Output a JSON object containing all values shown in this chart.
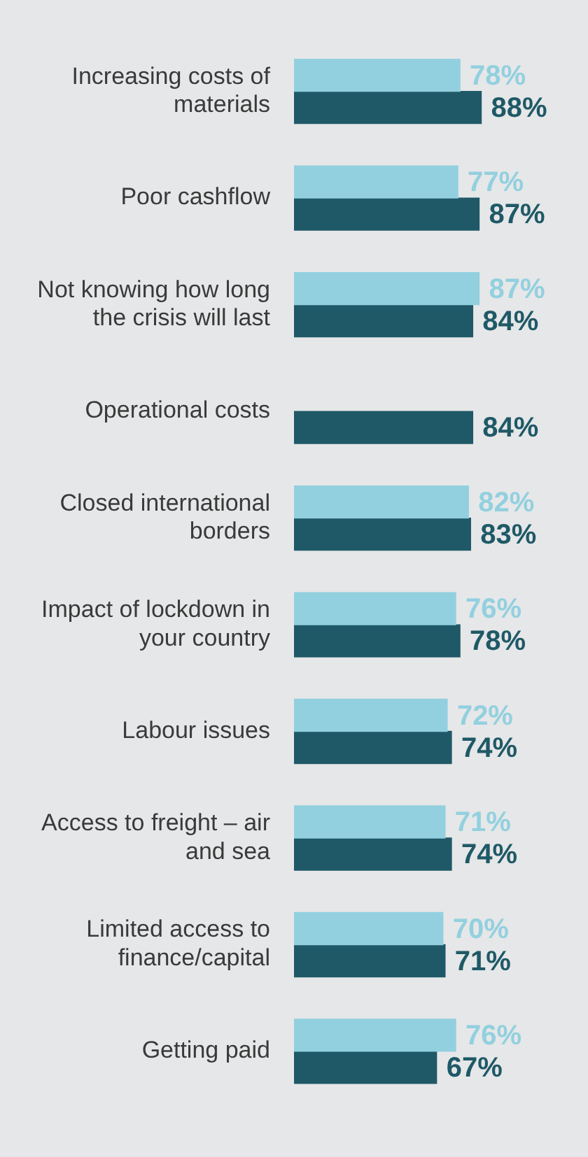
{
  "chart_data": {
    "type": "bar",
    "orientation": "horizontal",
    "categories": [
      "Increasing costs of materials",
      "Poor cashflow",
      "Not knowing how long the crisis will last",
      "Operational costs",
      "Closed international borders",
      "Impact of lockdown in your country",
      "Labour issues",
      "Access to freight – air and sea",
      "Limited access to finance/capital",
      "Getting paid"
    ],
    "series": [
      {
        "color": "#92d0df",
        "values": [
          78,
          77,
          87,
          null,
          82,
          76,
          72,
          71,
          70,
          76
        ],
        "value_labels": [
          "78%",
          "77%",
          "87%",
          null,
          "82%",
          "76%",
          "72%",
          "71%",
          "70%",
          "76%"
        ]
      },
      {
        "color": "#1f5967",
        "values": [
          88,
          87,
          84,
          84,
          83,
          78,
          74,
          74,
          71,
          67
        ],
        "value_labels": [
          "88%",
          "87%",
          "84%",
          "84%",
          "83%",
          "78%",
          "74%",
          "74%",
          "71%",
          "67%"
        ]
      }
    ],
    "grid": false,
    "legend": false,
    "tick_labels": "y"
  }
}
